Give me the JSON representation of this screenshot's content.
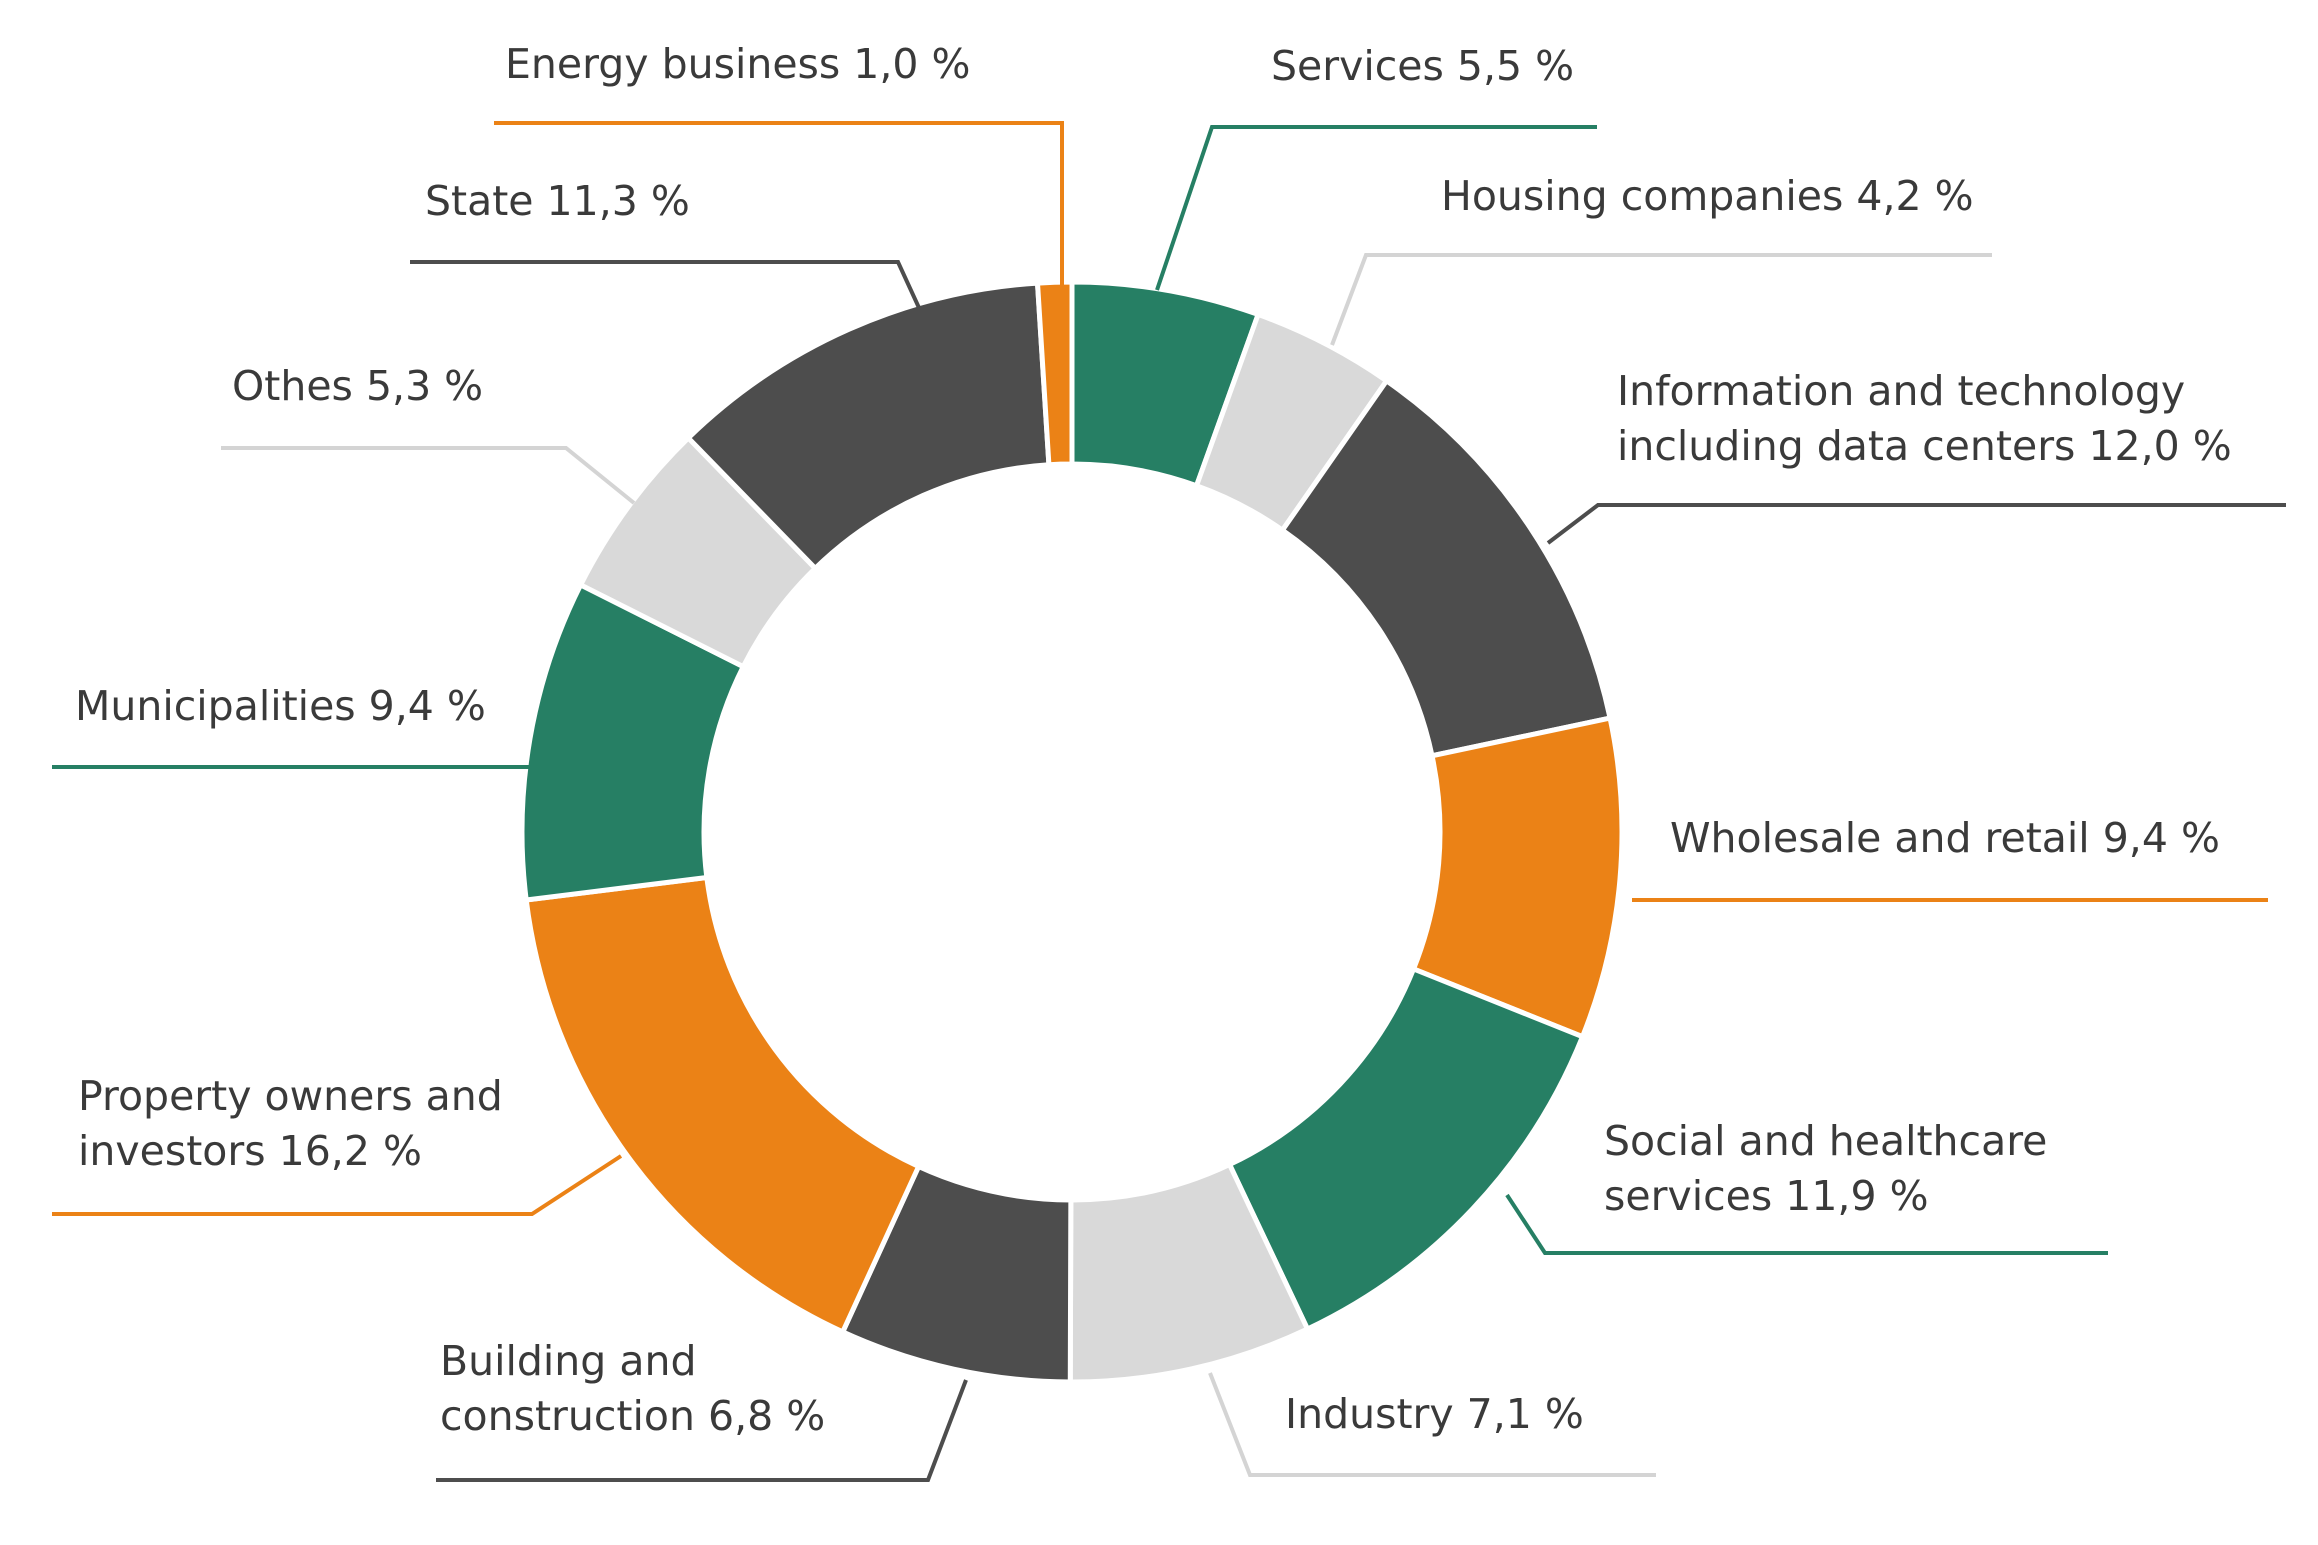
{
  "chart_data": {
    "type": "pie",
    "variant": "donut",
    "title": "",
    "unit": "%",
    "series": [
      {
        "name": "Services",
        "value": 5.5,
        "color": "#267F64",
        "label_lines": [
          "Services 5,5 %"
        ]
      },
      {
        "name": "Housing companies",
        "value": 4.2,
        "color": "#D9D9D9",
        "label_lines": [
          "Housing companies 4,2 %"
        ]
      },
      {
        "name": "Information and technology including data centers",
        "value": 12.0,
        "color": "#4D4D4D",
        "label_lines": [
          "Information and technology",
          "including data centers 12,0 %"
        ]
      },
      {
        "name": "Wholesale and retail",
        "value": 9.4,
        "color": "#EB8216",
        "label_lines": [
          "Wholesale and retail 9,4 %"
        ]
      },
      {
        "name": "Social and healthcare services",
        "value": 11.9,
        "color": "#267F64",
        "label_lines": [
          "Social and healthcare",
          "services 11,9 %"
        ]
      },
      {
        "name": "Industry",
        "value": 7.1,
        "color": "#D9D9D9",
        "label_lines": [
          "Industry 7,1 %"
        ]
      },
      {
        "name": "Building and construction",
        "value": 6.8,
        "color": "#4D4D4D",
        "label_lines": [
          "Building and",
          "construction 6,8 %"
        ]
      },
      {
        "name": "Property owners and investors",
        "value": 16.2,
        "color": "#EB8216",
        "label_lines": [
          "Property owners and",
          "investors 16,2 %"
        ]
      },
      {
        "name": "Municipalities",
        "value": 9.4,
        "color": "#267F64",
        "label_lines": [
          "Municipalities 9,4 %"
        ]
      },
      {
        "name": "Othes",
        "value": 5.3,
        "color": "#D9D9D9",
        "label_lines": [
          "Othes 5,3 %"
        ]
      },
      {
        "name": "State",
        "value": 11.3,
        "color": "#4D4D4D",
        "label_lines": [
          "State 11,3 %"
        ]
      },
      {
        "name": "Energy business",
        "value": 1.0,
        "color": "#EB8216",
        "label_lines": [
          "Energy business 1,0 %"
        ]
      }
    ]
  }
}
